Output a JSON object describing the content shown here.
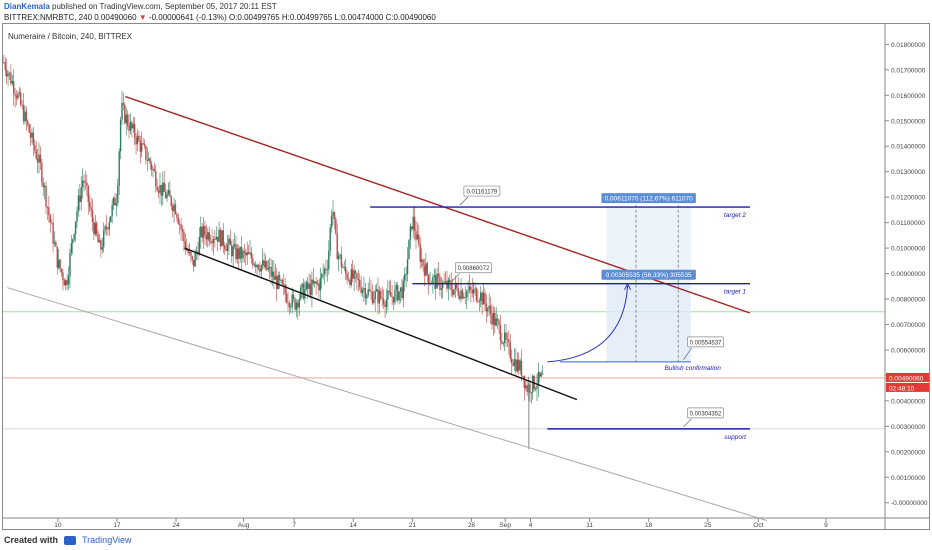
{
  "header": {
    "author": "DianKemala",
    "published": "published on TradingView.com, September 05, 2017 20:11 EST",
    "ticker_line": "BITTREX:NMRBTC, 240",
    "last_price": "0.00490060",
    "change_arrow": "▼",
    "change": "-0.00000641 (-0.13%)",
    "ohlc": "O:0.00499765 H:0.00499765 L:0.00474000 C:0.00490060"
  },
  "chart_title": "Numeraire / Bitcoin, 240, BITTREX",
  "footer": {
    "created_with": "Created with",
    "brand": "TradingView"
  },
  "chart_data": {
    "type": "candlestick",
    "title": "Numeraire / Bitcoin, 240, BITTREX",
    "x_ticks": [
      {
        "label": "10",
        "day": 10
      },
      {
        "label": "17",
        "day": 17
      },
      {
        "label": "24",
        "day": 24
      },
      {
        "label": "Aug",
        "day": 32
      },
      {
        "label": "7",
        "day": 38
      },
      {
        "label": "14",
        "day": 45
      },
      {
        "label": "21",
        "day": 52
      },
      {
        "label": "28",
        "day": 59
      },
      {
        "label": "Sep",
        "day": 63
      },
      {
        "label": "4",
        "day": 66
      },
      {
        "label": "11",
        "day": 73
      },
      {
        "label": "18",
        "day": 80
      },
      {
        "label": "25",
        "day": 87
      },
      {
        "label": "Oct",
        "day": 93
      },
      {
        "label": "9",
        "day": 101
      }
    ],
    "x_range_days": [
      3.5,
      108
    ],
    "y_range": [
      -0.0006,
      0.0188
    ],
    "y_ticks": [
      "-0.00000000",
      "0.00100000",
      "0.00200000",
      "0.00300000",
      "0.00400000",
      "0.00500000",
      "0.00600000",
      "0.00700000",
      "0.00800000",
      "0.00900000",
      "0.01000000",
      "0.01100000",
      "0.01200000",
      "0.01300000",
      "0.01400000",
      "0.01500000",
      "0.01600000",
      "0.01700000",
      "0.01800000"
    ],
    "price_path": [
      [
        3.6,
        0.0173
      ],
      [
        5,
        0.0162
      ],
      [
        6,
        0.0152
      ],
      [
        8,
        0.0131
      ],
      [
        9,
        0.0112
      ],
      [
        10,
        0.0094
      ],
      [
        11,
        0.0086
      ],
      [
        12,
        0.011
      ],
      [
        13,
        0.0128
      ],
      [
        14,
        0.0112
      ],
      [
        15,
        0.0099
      ],
      [
        16,
        0.0111
      ],
      [
        17,
        0.0121
      ],
      [
        17.5,
        0.0155
      ],
      [
        18.5,
        0.0148
      ],
      [
        19.5,
        0.0142
      ],
      [
        21,
        0.0133
      ],
      [
        22,
        0.0124
      ],
      [
        24,
        0.0116
      ],
      [
        25,
        0.0102
      ],
      [
        26,
        0.0093
      ],
      [
        27,
        0.0106
      ],
      [
        29,
        0.0105
      ],
      [
        31,
        0.0098
      ],
      [
        33,
        0.0096
      ],
      [
        35,
        0.0091
      ],
      [
        37,
        0.0082
      ],
      [
        38,
        0.0078
      ],
      [
        39,
        0.0083
      ],
      [
        41,
        0.0086
      ],
      [
        42,
        0.0095
      ],
      [
        42.5,
        0.0118
      ],
      [
        43,
        0.01
      ],
      [
        44,
        0.009
      ],
      [
        45,
        0.0088
      ],
      [
        47,
        0.0082
      ],
      [
        49,
        0.008
      ],
      [
        51,
        0.0084
      ],
      [
        52,
        0.0112
      ],
      [
        53,
        0.0096
      ],
      [
        54,
        0.0088
      ],
      [
        56,
        0.0085
      ],
      [
        58,
        0.0083
      ],
      [
        60,
        0.0082
      ],
      [
        61,
        0.0076
      ],
      [
        62,
        0.007
      ],
      [
        63,
        0.0063
      ],
      [
        64,
        0.0056
      ],
      [
        65,
        0.0052
      ],
      [
        65.5,
        0.0045
      ],
      [
        66.5,
        0.0047
      ],
      [
        67.5,
        0.0049
      ]
    ],
    "wick_low": {
      "day": 65.8,
      "value": 0.0021
    },
    "last_price": 0.0049006,
    "last_price_label": "0.00490060",
    "countdown_label": "02:48:10",
    "lines": [
      {
        "name": "upper channel (red)",
        "color": "#a32323",
        "points": [
          [
            18,
            0.01595
          ],
          [
            92,
            0.00745
          ]
        ]
      },
      {
        "name": "lower channel (black)",
        "color": "#111111",
        "points": [
          [
            25,
            0.01
          ],
          [
            71.5,
            0.00405
          ]
        ]
      },
      {
        "name": "long support (grey)",
        "color": "#a9a9a9",
        "points": [
          [
            4,
            0.00845
          ],
          [
            94,
            -0.0007
          ]
        ]
      }
    ],
    "horizontal_levels": [
      {
        "value": 0.0075,
        "color": "#9ee09e",
        "full_width": true
      },
      {
        "value": 0.0049006,
        "color": "#f0a7a0",
        "full_width": true
      },
      {
        "value": 0.0029,
        "color": "#cfd8e8",
        "full_width": true
      }
    ],
    "targets": [
      {
        "value": 0.011611,
        "from_day": 47,
        "to_day": 92,
        "label": "target 2",
        "callout": "0.01161179",
        "callout_day": 60
      },
      {
        "value": 0.0086,
        "from_day": 52,
        "to_day": 92,
        "label": "target 1",
        "callout": "0.00860072",
        "callout_day": 59
      },
      {
        "value": 0.0029,
        "from_day": 68,
        "to_day": 92,
        "label": "support",
        "callout": "0.00304352",
        "callout_day": 86.5
      }
    ],
    "bullish_confirmation": {
      "value": 0.00553,
      "from_day": 69.5,
      "to_day": 85,
      "label": "Bullish confirmation",
      "callout": "0.00554537",
      "callout_day": 86.5
    },
    "projection_boxes": [
      {
        "from_day": 75,
        "to_day": 85,
        "top": 0.0086,
        "bottom": 0.00553,
        "label": "0.00305535 (56.33%) 305535"
      },
      {
        "from_day": 75,
        "to_day": 85,
        "top": 0.01161,
        "bottom": 0.00553,
        "label": "0.00611070 (112.67%) 611070"
      }
    ],
    "dashed_markers": [
      78.5,
      83.5
    ],
    "arrow_curve": {
      "start": [
        68,
        0.00553
      ],
      "end": [
        77.5,
        0.0086
      ]
    }
  }
}
